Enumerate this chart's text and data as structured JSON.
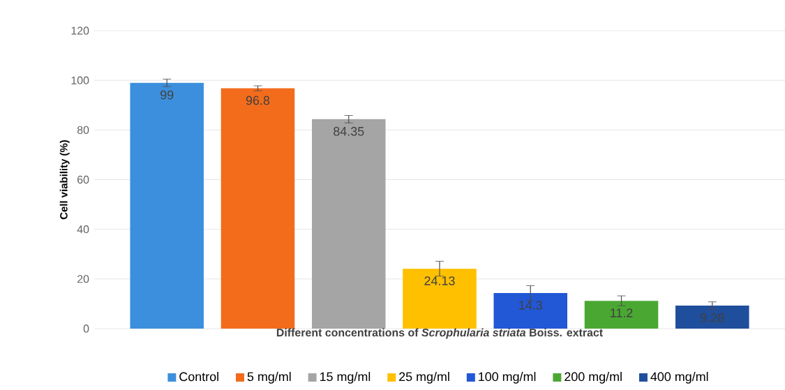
{
  "chart_data": {
    "type": "bar",
    "xlabel": "Different concentrations of *Scrophularia striata* Boiss. extract",
    "ylabel": "Cell viability (%)",
    "categories": [
      null,
      null,
      null,
      null,
      null,
      null,
      null
    ],
    "series": [
      {
        "name": "Control",
        "color": "#3c8fdc",
        "values": [
          99,
          null,
          null,
          null,
          null,
          null,
          null
        ],
        "errors": [
          1.5,
          null,
          null,
          null,
          null,
          null,
          null
        ]
      },
      {
        "name": "5 mg/ml",
        "color": "#f26c1c",
        "values": [
          null,
          96.8,
          null,
          null,
          null,
          null,
          null
        ],
        "errors": [
          null,
          1,
          null,
          null,
          null,
          null,
          null
        ]
      },
      {
        "name": "15 mg/ml",
        "color": "#a5a5a5",
        "values": [
          null,
          null,
          84.35,
          null,
          null,
          null,
          null
        ],
        "errors": [
          null,
          null,
          1.5,
          null,
          null,
          null,
          null
        ]
      },
      {
        "name": "25 mg/ml",
        "color": "#ffc000",
        "values": [
          null,
          null,
          null,
          24.13,
          null,
          null,
          null
        ],
        "errors": [
          null,
          null,
          null,
          3,
          null,
          null,
          null
        ]
      },
      {
        "name": "100 mg/ml",
        "color": "#2257d6",
        "values": [
          null,
          null,
          null,
          null,
          14.3,
          null,
          null
        ],
        "errors": [
          null,
          null,
          null,
          null,
          3,
          null,
          null
        ]
      },
      {
        "name": "200 mg/ml",
        "color": "#4aa832",
        "values": [
          null,
          null,
          null,
          null,
          null,
          11.2,
          null
        ],
        "errors": [
          null,
          null,
          null,
          null,
          null,
          2,
          null
        ]
      },
      {
        "name": "400 mg/ml",
        "color": "#1f4e9c",
        "values": [
          null,
          null,
          null,
          null,
          null,
          null,
          9.28
        ],
        "errors": [
          null,
          null,
          null,
          null,
          null,
          null,
          1.5
        ]
      }
    ],
    "ylim": [
      0,
      120
    ],
    "yticks": [
      0,
      20,
      40,
      60,
      80,
      100,
      120
    ],
    "grid": "y",
    "legend": "bottom",
    "data_labels": true
  }
}
